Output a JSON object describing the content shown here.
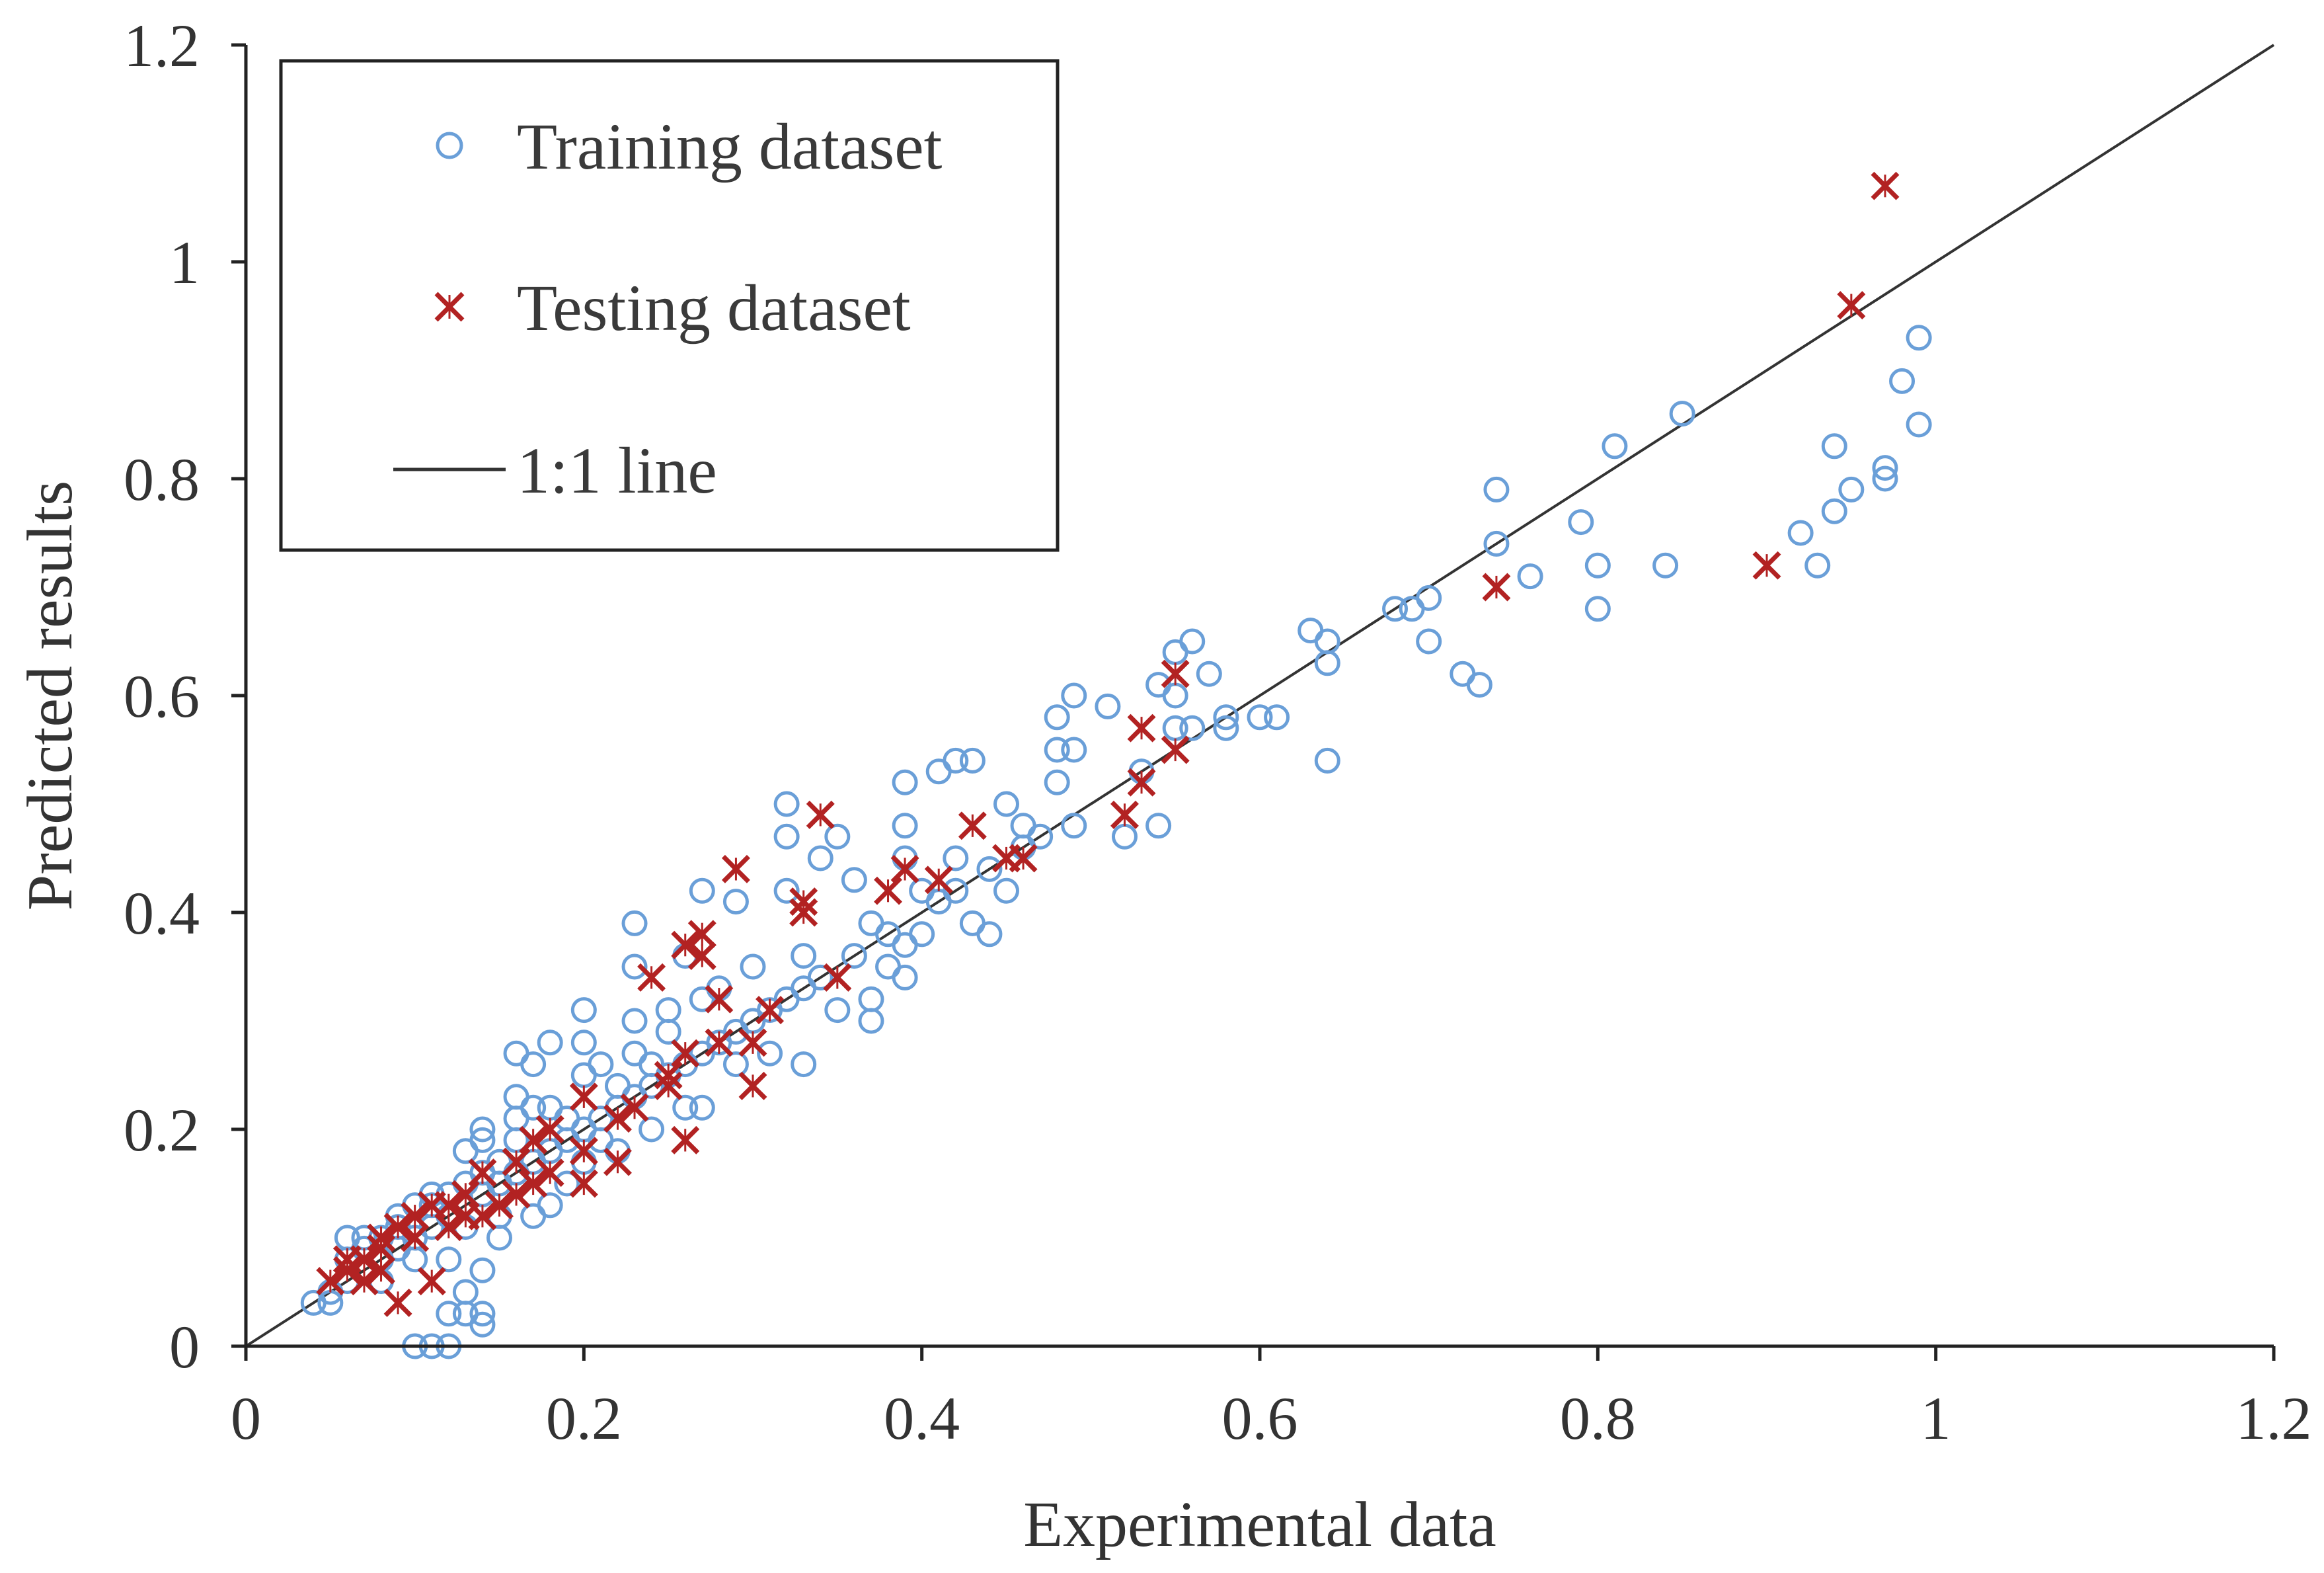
{
  "chart_data": {
    "type": "scatter",
    "title": "",
    "xlabel": "Experimental data",
    "ylabel": "Predicted results",
    "xlim": [
      0,
      1.2
    ],
    "ylim": [
      0,
      1.2
    ],
    "xticks": [
      "0",
      "0.2",
      "0.4",
      "0.6",
      "0.8",
      "1",
      "1.2"
    ],
    "yticks": [
      "0",
      "0.2",
      "0.4",
      "0.6",
      "0.8",
      "1",
      "1.2"
    ],
    "grid": false,
    "legend": {
      "placement": "top-left",
      "entries": [
        {
          "label": "Training dataset",
          "marker": "circle"
        },
        {
          "label": "Testing dataset",
          "marker": "cross"
        },
        {
          "label": "1:1 line",
          "marker": "line"
        }
      ]
    },
    "colors": {
      "training": "#6a9fd8",
      "testing": "#b22222",
      "line": "#333333",
      "axis": "#222222"
    },
    "reference_line": {
      "label": "1:1 line",
      "x": [
        0,
        1.2
      ],
      "y": [
        0,
        1.2
      ]
    },
    "series": [
      {
        "name": "Training dataset",
        "marker": "circle",
        "points": [
          [
            0.04,
            0.04
          ],
          [
            0.05,
            0.05
          ],
          [
            0.05,
            0.04
          ],
          [
            0.06,
            0.06
          ],
          [
            0.06,
            0.08
          ],
          [
            0.06,
            0.1
          ],
          [
            0.07,
            0.07
          ],
          [
            0.07,
            0.09
          ],
          [
            0.07,
            0.1
          ],
          [
            0.08,
            0.08
          ],
          [
            0.08,
            0.1
          ],
          [
            0.08,
            0.06
          ],
          [
            0.09,
            0.09
          ],
          [
            0.09,
            0.11
          ],
          [
            0.09,
            0.12
          ],
          [
            0.1,
            0.1
          ],
          [
            0.1,
            0.08
          ],
          [
            0.1,
            0.13
          ],
          [
            0.1,
            0.0
          ],
          [
            0.11,
            0.0
          ],
          [
            0.11,
            0.11
          ],
          [
            0.11,
            0.13
          ],
          [
            0.11,
            0.14
          ],
          [
            0.12,
            0.0
          ],
          [
            0.12,
            0.03
          ],
          [
            0.12,
            0.12
          ],
          [
            0.12,
            0.08
          ],
          [
            0.12,
            0.14
          ],
          [
            0.13,
            0.05
          ],
          [
            0.13,
            0.03
          ],
          [
            0.13,
            0.15
          ],
          [
            0.13,
            0.18
          ],
          [
            0.13,
            0.11
          ],
          [
            0.14,
            0.02
          ],
          [
            0.14,
            0.03
          ],
          [
            0.14,
            0.07
          ],
          [
            0.14,
            0.14
          ],
          [
            0.14,
            0.16
          ],
          [
            0.14,
            0.19
          ],
          [
            0.14,
            0.2
          ],
          [
            0.15,
            0.15
          ],
          [
            0.15,
            0.12
          ],
          [
            0.15,
            0.1
          ],
          [
            0.15,
            0.17
          ],
          [
            0.16,
            0.16
          ],
          [
            0.16,
            0.21
          ],
          [
            0.16,
            0.23
          ],
          [
            0.16,
            0.27
          ],
          [
            0.16,
            0.19
          ],
          [
            0.17,
            0.17
          ],
          [
            0.17,
            0.12
          ],
          [
            0.17,
            0.22
          ],
          [
            0.17,
            0.26
          ],
          [
            0.18,
            0.18
          ],
          [
            0.18,
            0.22
          ],
          [
            0.18,
            0.28
          ],
          [
            0.18,
            0.13
          ],
          [
            0.19,
            0.19
          ],
          [
            0.19,
            0.21
          ],
          [
            0.19,
            0.15
          ],
          [
            0.2,
            0.2
          ],
          [
            0.2,
            0.25
          ],
          [
            0.2,
            0.28
          ],
          [
            0.2,
            0.31
          ],
          [
            0.2,
            0.17
          ],
          [
            0.21,
            0.21
          ],
          [
            0.21,
            0.26
          ],
          [
            0.21,
            0.19
          ],
          [
            0.22,
            0.22
          ],
          [
            0.22,
            0.24
          ],
          [
            0.22,
            0.18
          ],
          [
            0.23,
            0.23
          ],
          [
            0.23,
            0.27
          ],
          [
            0.23,
            0.3
          ],
          [
            0.23,
            0.35
          ],
          [
            0.23,
            0.39
          ],
          [
            0.24,
            0.24
          ],
          [
            0.24,
            0.2
          ],
          [
            0.24,
            0.26
          ],
          [
            0.25,
            0.25
          ],
          [
            0.25,
            0.29
          ],
          [
            0.25,
            0.31
          ],
          [
            0.26,
            0.26
          ],
          [
            0.26,
            0.22
          ],
          [
            0.26,
            0.36
          ],
          [
            0.27,
            0.27
          ],
          [
            0.27,
            0.22
          ],
          [
            0.27,
            0.32
          ],
          [
            0.27,
            0.42
          ],
          [
            0.28,
            0.28
          ],
          [
            0.28,
            0.33
          ],
          [
            0.29,
            0.29
          ],
          [
            0.29,
            0.26
          ],
          [
            0.29,
            0.41
          ],
          [
            0.3,
            0.3
          ],
          [
            0.3,
            0.35
          ],
          [
            0.31,
            0.31
          ],
          [
            0.31,
            0.27
          ],
          [
            0.32,
            0.32
          ],
          [
            0.32,
            0.42
          ],
          [
            0.32,
            0.47
          ],
          [
            0.32,
            0.5
          ],
          [
            0.33,
            0.33
          ],
          [
            0.33,
            0.26
          ],
          [
            0.33,
            0.36
          ],
          [
            0.34,
            0.34
          ],
          [
            0.34,
            0.45
          ],
          [
            0.35,
            0.31
          ],
          [
            0.35,
            0.47
          ],
          [
            0.36,
            0.36
          ],
          [
            0.36,
            0.43
          ],
          [
            0.37,
            0.3
          ],
          [
            0.37,
            0.32
          ],
          [
            0.37,
            0.39
          ],
          [
            0.38,
            0.38
          ],
          [
            0.38,
            0.35
          ],
          [
            0.39,
            0.34
          ],
          [
            0.39,
            0.37
          ],
          [
            0.39,
            0.45
          ],
          [
            0.39,
            0.48
          ],
          [
            0.39,
            0.52
          ],
          [
            0.4,
            0.38
          ],
          [
            0.4,
            0.42
          ],
          [
            0.41,
            0.41
          ],
          [
            0.41,
            0.53
          ],
          [
            0.42,
            0.42
          ],
          [
            0.42,
            0.45
          ],
          [
            0.42,
            0.54
          ],
          [
            0.43,
            0.39
          ],
          [
            0.43,
            0.54
          ],
          [
            0.44,
            0.38
          ],
          [
            0.44,
            0.44
          ],
          [
            0.45,
            0.42
          ],
          [
            0.45,
            0.5
          ],
          [
            0.46,
            0.46
          ],
          [
            0.46,
            0.48
          ],
          [
            0.47,
            0.47
          ],
          [
            0.48,
            0.52
          ],
          [
            0.48,
            0.55
          ],
          [
            0.48,
            0.58
          ],
          [
            0.49,
            0.48
          ],
          [
            0.49,
            0.55
          ],
          [
            0.49,
            0.6
          ],
          [
            0.51,
            0.59
          ],
          [
            0.52,
            0.47
          ],
          [
            0.53,
            0.53
          ],
          [
            0.54,
            0.48
          ],
          [
            0.54,
            0.61
          ],
          [
            0.55,
            0.57
          ],
          [
            0.55,
            0.6
          ],
          [
            0.55,
            0.64
          ],
          [
            0.56,
            0.57
          ],
          [
            0.56,
            0.65
          ],
          [
            0.57,
            0.62
          ],
          [
            0.58,
            0.57
          ],
          [
            0.58,
            0.58
          ],
          [
            0.6,
            0.58
          ],
          [
            0.61,
            0.58
          ],
          [
            0.63,
            0.66
          ],
          [
            0.64,
            0.54
          ],
          [
            0.64,
            0.63
          ],
          [
            0.64,
            0.65
          ],
          [
            0.68,
            0.68
          ],
          [
            0.69,
            0.68
          ],
          [
            0.7,
            0.65
          ],
          [
            0.7,
            0.69
          ],
          [
            0.72,
            0.62
          ],
          [
            0.73,
            0.61
          ],
          [
            0.74,
            0.74
          ],
          [
            0.74,
            0.79
          ],
          [
            0.76,
            0.71
          ],
          [
            0.79,
            0.76
          ],
          [
            0.8,
            0.68
          ],
          [
            0.8,
            0.72
          ],
          [
            0.81,
            0.83
          ],
          [
            0.84,
            0.72
          ],
          [
            0.85,
            0.86
          ],
          [
            0.92,
            0.75
          ],
          [
            0.93,
            0.72
          ],
          [
            0.94,
            0.77
          ],
          [
            0.94,
            0.83
          ],
          [
            0.95,
            0.79
          ],
          [
            0.97,
            0.8
          ],
          [
            0.97,
            0.81
          ],
          [
            0.98,
            0.89
          ],
          [
            0.99,
            0.85
          ],
          [
            0.99,
            0.93
          ]
        ]
      },
      {
        "name": "Testing dataset",
        "marker": "cross",
        "points": [
          [
            0.05,
            0.06
          ],
          [
            0.06,
            0.07
          ],
          [
            0.06,
            0.08
          ],
          [
            0.07,
            0.08
          ],
          [
            0.07,
            0.06
          ],
          [
            0.08,
            0.09
          ],
          [
            0.08,
            0.07
          ],
          [
            0.08,
            0.1
          ],
          [
            0.09,
            0.04
          ],
          [
            0.09,
            0.11
          ],
          [
            0.1,
            0.12
          ],
          [
            0.1,
            0.1
          ],
          [
            0.11,
            0.13
          ],
          [
            0.11,
            0.06
          ],
          [
            0.12,
            0.11
          ],
          [
            0.12,
            0.13
          ],
          [
            0.13,
            0.12
          ],
          [
            0.13,
            0.14
          ],
          [
            0.14,
            0.12
          ],
          [
            0.14,
            0.16
          ],
          [
            0.15,
            0.13
          ],
          [
            0.16,
            0.17
          ],
          [
            0.16,
            0.14
          ],
          [
            0.17,
            0.15
          ],
          [
            0.17,
            0.19
          ],
          [
            0.18,
            0.16
          ],
          [
            0.18,
            0.2
          ],
          [
            0.2,
            0.18
          ],
          [
            0.2,
            0.15
          ],
          [
            0.2,
            0.23
          ],
          [
            0.22,
            0.21
          ],
          [
            0.22,
            0.17
          ],
          [
            0.23,
            0.22
          ],
          [
            0.24,
            0.34
          ],
          [
            0.25,
            0.25
          ],
          [
            0.25,
            0.24
          ],
          [
            0.26,
            0.19
          ],
          [
            0.26,
            0.27
          ],
          [
            0.26,
            0.37
          ],
          [
            0.27,
            0.36
          ],
          [
            0.27,
            0.38
          ],
          [
            0.28,
            0.32
          ],
          [
            0.28,
            0.28
          ],
          [
            0.29,
            0.44
          ],
          [
            0.3,
            0.28
          ],
          [
            0.3,
            0.24
          ],
          [
            0.31,
            0.31
          ],
          [
            0.33,
            0.4
          ],
          [
            0.33,
            0.41
          ],
          [
            0.34,
            0.49
          ],
          [
            0.35,
            0.34
          ],
          [
            0.38,
            0.42
          ],
          [
            0.39,
            0.44
          ],
          [
            0.41,
            0.43
          ],
          [
            0.43,
            0.48
          ],
          [
            0.45,
            0.45
          ],
          [
            0.46,
            0.45
          ],
          [
            0.52,
            0.49
          ],
          [
            0.53,
            0.52
          ],
          [
            0.53,
            0.57
          ],
          [
            0.55,
            0.55
          ],
          [
            0.55,
            0.62
          ],
          [
            0.74,
            0.7
          ],
          [
            0.9,
            0.72
          ],
          [
            0.95,
            0.96
          ],
          [
            0.97,
            1.07
          ]
        ]
      }
    ]
  }
}
